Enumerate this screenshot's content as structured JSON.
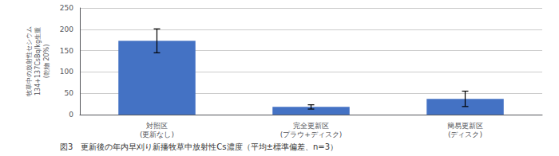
{
  "chart_data": {
    "type": "bar",
    "categories": [
      "対照区\n(更新なし)",
      "完全更新区\n(プラウ+ディスク)",
      "簡易更新区\n(ディスク)"
    ],
    "values": [
      173,
      18,
      37
    ],
    "errors": [
      28,
      5,
      18
    ],
    "color": "#4472C4",
    "ylabel": "牧草中の放射性セシウム\n134+137CsBq/kg生重\n(乾物 20%)",
    "caption": "図3　更新後の年内早刈り新播牧草中放射性Cs濃度（平均±標準偏差、n=3）",
    "ylim": [
      0,
      250
    ],
    "yticks": [
      0,
      50,
      100,
      150,
      200,
      250
    ],
    "grid": true
  }
}
